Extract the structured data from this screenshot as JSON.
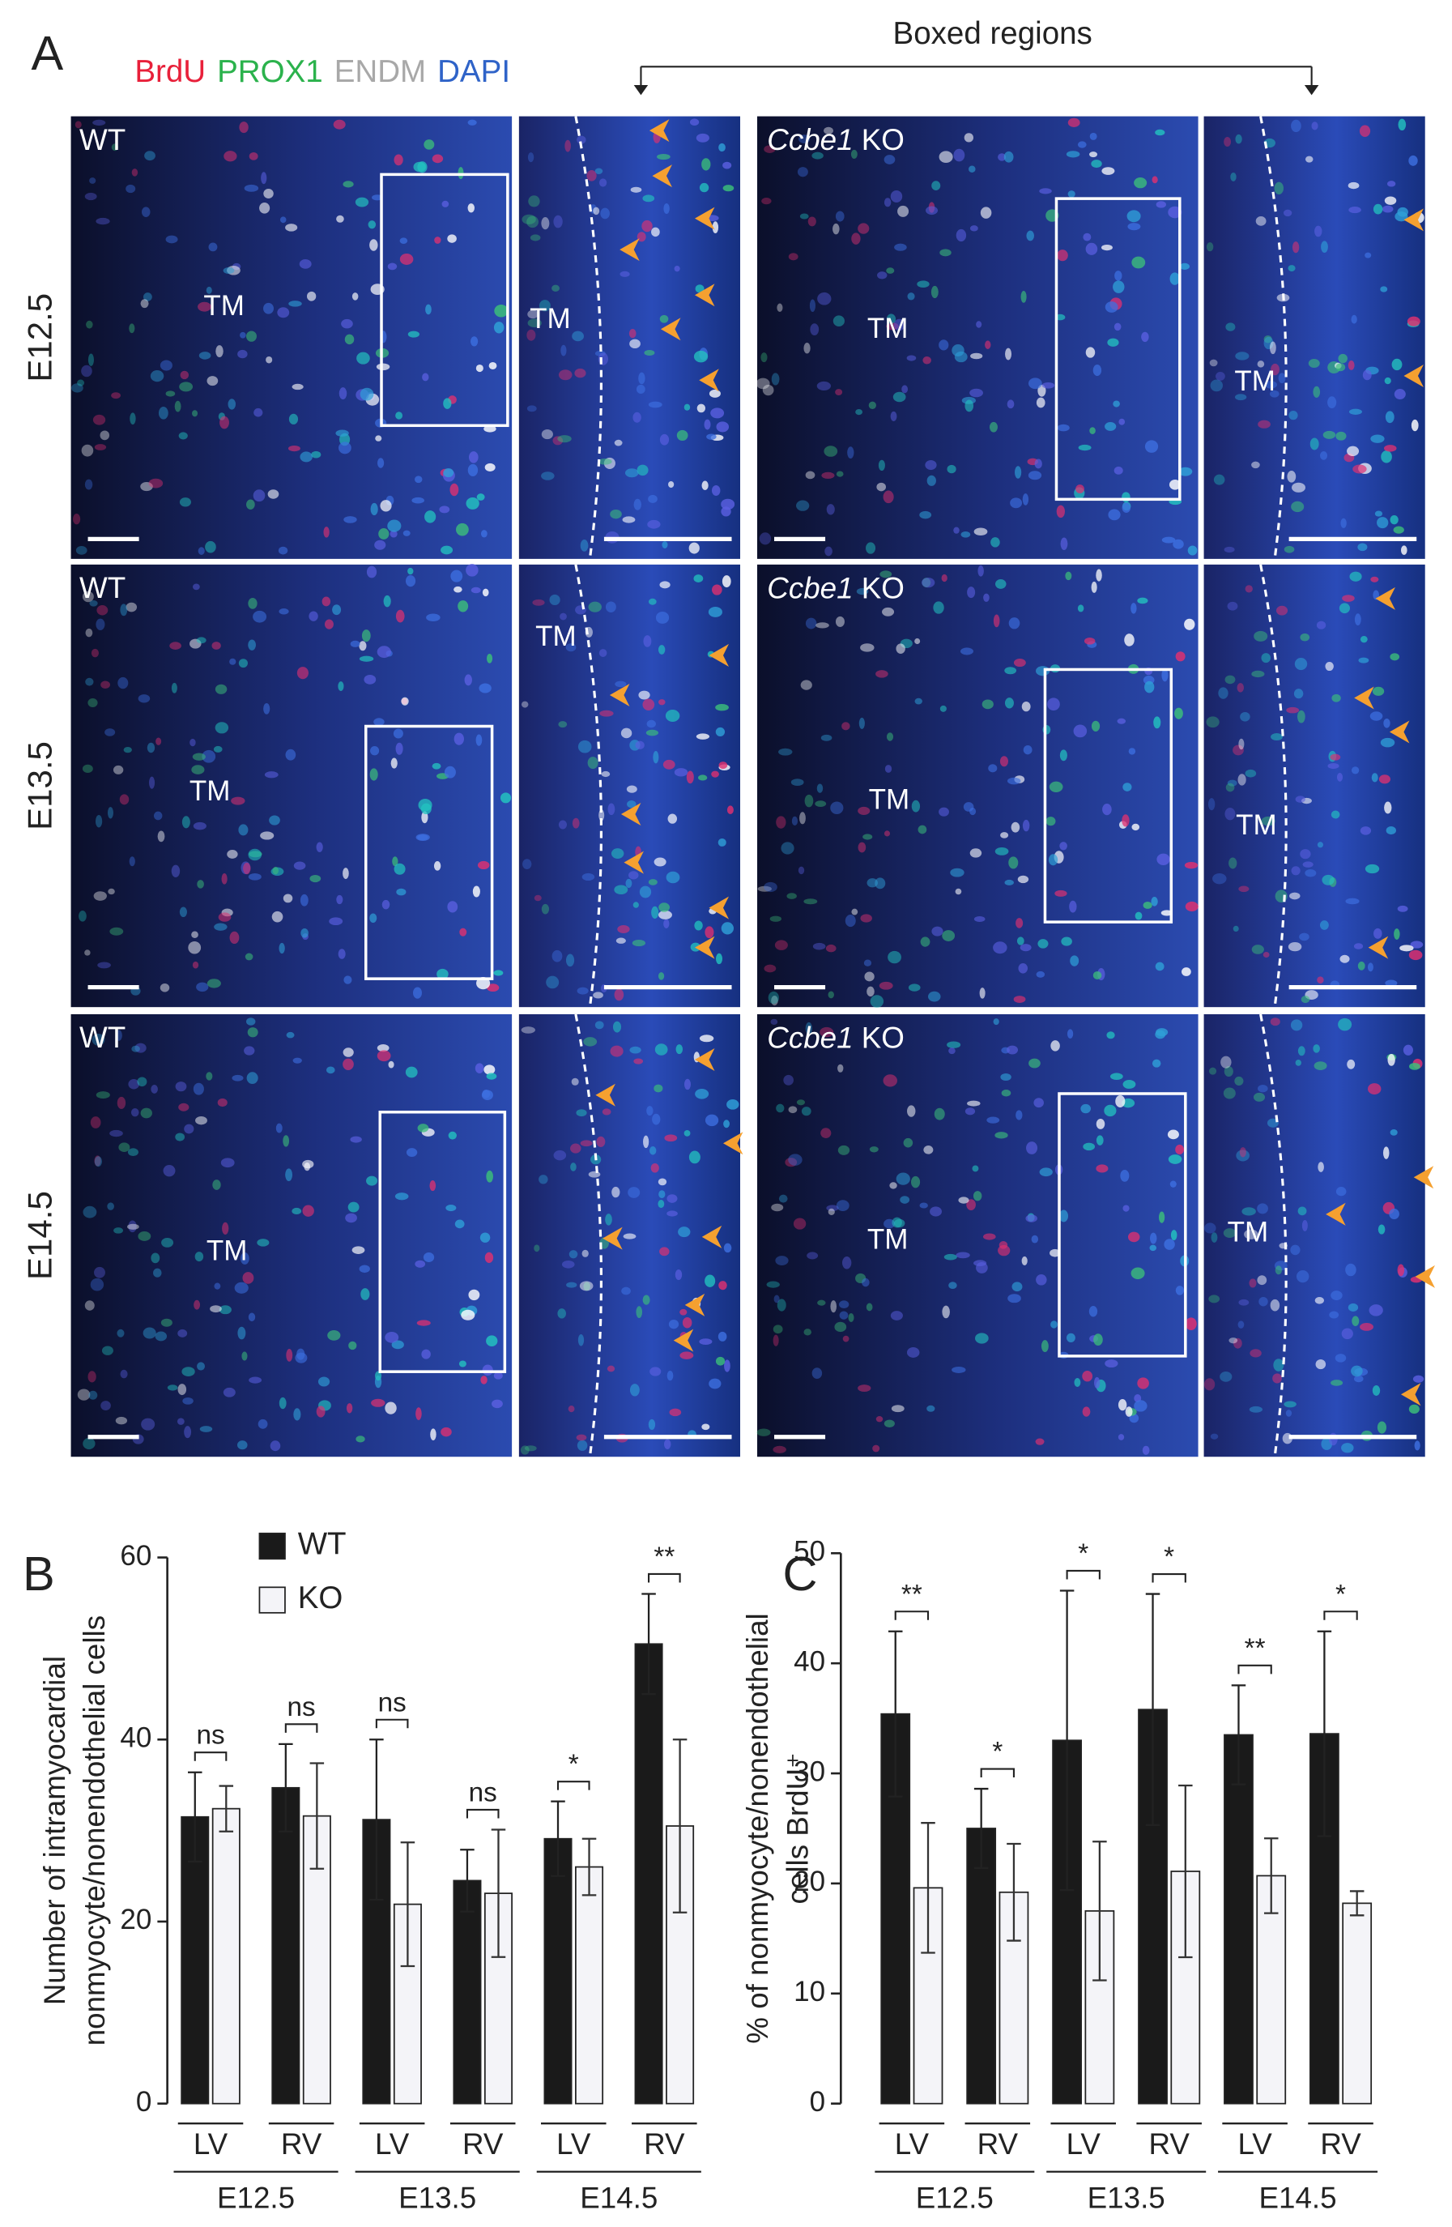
{
  "panel_a": {
    "letter": "A",
    "stains": [
      {
        "name": "BrdU",
        "color": "#e8203a"
      },
      {
        "name": "PROX1",
        "color": "#2bb24c"
      },
      {
        "name": "ENDM",
        "color": "#a8a8a8"
      },
      {
        "name": "DAPI",
        "color": "#2f63c8"
      }
    ],
    "boxed_label": "Boxed regions",
    "rows": [
      {
        "label": "E12.5",
        "wt": "WT",
        "ko_gene": "Ccbe1",
        "ko_suffix": "KO",
        "tm": [
          "TM",
          "TM",
          "TM",
          "TM"
        ]
      },
      {
        "label": "E13.5",
        "wt": "WT",
        "ko_gene": "Ccbe1",
        "ko_suffix": "KO",
        "tm": [
          "TM",
          "TM",
          "TM",
          "TM"
        ]
      },
      {
        "label": "E14.5",
        "wt": "WT",
        "ko_gene": "Ccbe1",
        "ko_suffix": "KO",
        "tm": [
          "TM",
          "TM",
          "TM"
        ]
      }
    ]
  },
  "chart_data": [
    {
      "type": "bar",
      "letter": "B",
      "ylabel": [
        "Number of intramyocardial",
        "nonmyocyte/nonendothelial cells"
      ],
      "categories": [
        "LV",
        "RV",
        "LV",
        "RV",
        "LV",
        "RV"
      ],
      "groups": [
        "E12.5",
        "E13.5",
        "E14.5"
      ],
      "series": [
        {
          "name": "WT",
          "color": "#1a1a1a",
          "values": [
            31.5,
            34.7,
            31.2,
            24.5,
            29.1,
            50.5
          ],
          "errors": [
            4.9,
            4.8,
            8.8,
            3.4,
            4.1,
            5.5
          ]
        },
        {
          "name": "KO",
          "color": "#f4f4f8",
          "values": [
            32.4,
            31.6,
            21.9,
            23.1,
            26,
            30.5
          ],
          "errors": [
            2.5,
            5.8,
            6.8,
            7,
            3.1,
            9.5
          ]
        }
      ],
      "annotations": [
        "ns",
        "ns",
        "ns",
        "ns",
        "*",
        "**"
      ],
      "ylim": [
        0,
        60
      ],
      "yticks": [
        0,
        20,
        40,
        60
      ],
      "legend": "top-left"
    },
    {
      "type": "bar",
      "letter": "C",
      "ylabel": [
        "% of nonmyocyte/nonendothelial",
        "cells BrdU⁺"
      ],
      "categories": [
        "LV",
        "RV",
        "LV",
        "RV",
        "LV",
        "RV"
      ],
      "groups": [
        "E12.5",
        "E13.5",
        "E14.5"
      ],
      "series": [
        {
          "color": "#1a1a1a",
          "values": [
            35.4,
            25,
            33,
            35.8,
            33.5,
            33.6
          ],
          "errors": [
            7.5,
            3.6,
            13.6,
            10.5,
            4.5,
            9.3
          ]
        },
        {
          "color": "#f4f4f8",
          "values": [
            19.6,
            19.2,
            17.5,
            21.1,
            20.7,
            18.2
          ],
          "errors": [
            5.9,
            4.4,
            6.3,
            7.8,
            3.4,
            1.1
          ]
        }
      ],
      "annotations": [
        "**",
        "*",
        "*",
        "*",
        "**",
        "*"
      ],
      "ylim": [
        0,
        50
      ],
      "yticks": [
        0,
        10,
        20,
        30,
        40,
        50
      ]
    }
  ]
}
